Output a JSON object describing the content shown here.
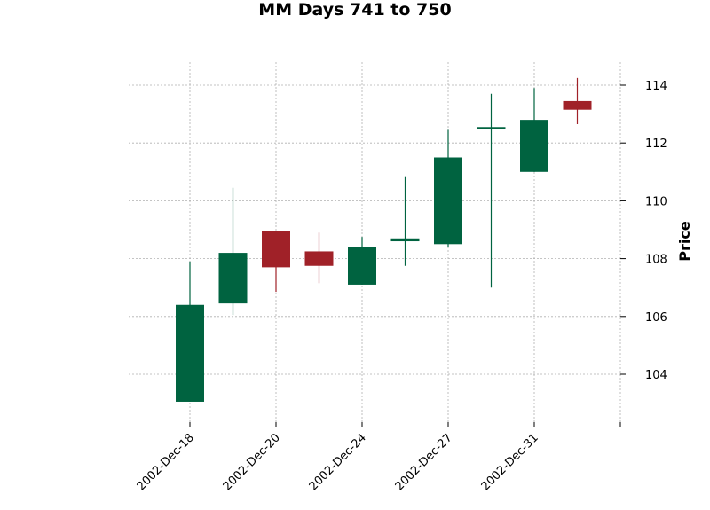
{
  "chart_data": {
    "type": "candlestick",
    "title": "MM Days 741 to 750",
    "ylabel": "Price",
    "xlabel": "",
    "ylim": [
      102.5,
      114.8
    ],
    "y_ticks": [
      104,
      106,
      108,
      110,
      112,
      114
    ],
    "x_tick_labels": [
      "2002-Dec-18",
      "2002-Dec-20",
      "2002-Dec-24",
      "2002-Dec-27",
      "2002-Dec-31"
    ],
    "grid": true,
    "colors": {
      "up": "#006340",
      "down": "#a02128",
      "grid": "#b0b0b0"
    },
    "candles": [
      {
        "open": 103.05,
        "high": 107.9,
        "low": 103.05,
        "close": 106.4
      },
      {
        "open": 106.45,
        "high": 110.45,
        "low": 106.05,
        "close": 108.2
      },
      {
        "open": 108.95,
        "high": 108.95,
        "low": 106.85,
        "close": 107.7
      },
      {
        "open": 108.25,
        "high": 108.9,
        "low": 107.15,
        "close": 107.75
      },
      {
        "open": 107.1,
        "high": 108.75,
        "low": 107.1,
        "close": 108.4
      },
      {
        "open": 108.6,
        "high": 110.85,
        "low": 107.75,
        "close": 108.7
      },
      {
        "open": 108.5,
        "high": 112.45,
        "low": 108.4,
        "close": 111.5
      },
      {
        "open": 112.5,
        "high": 113.7,
        "low": 107.0,
        "close": 112.55
      },
      {
        "open": 111.0,
        "high": 113.9,
        "low": 111.0,
        "close": 112.8
      },
      {
        "open": 113.45,
        "high": 114.25,
        "low": 112.65,
        "close": 113.15
      }
    ]
  }
}
